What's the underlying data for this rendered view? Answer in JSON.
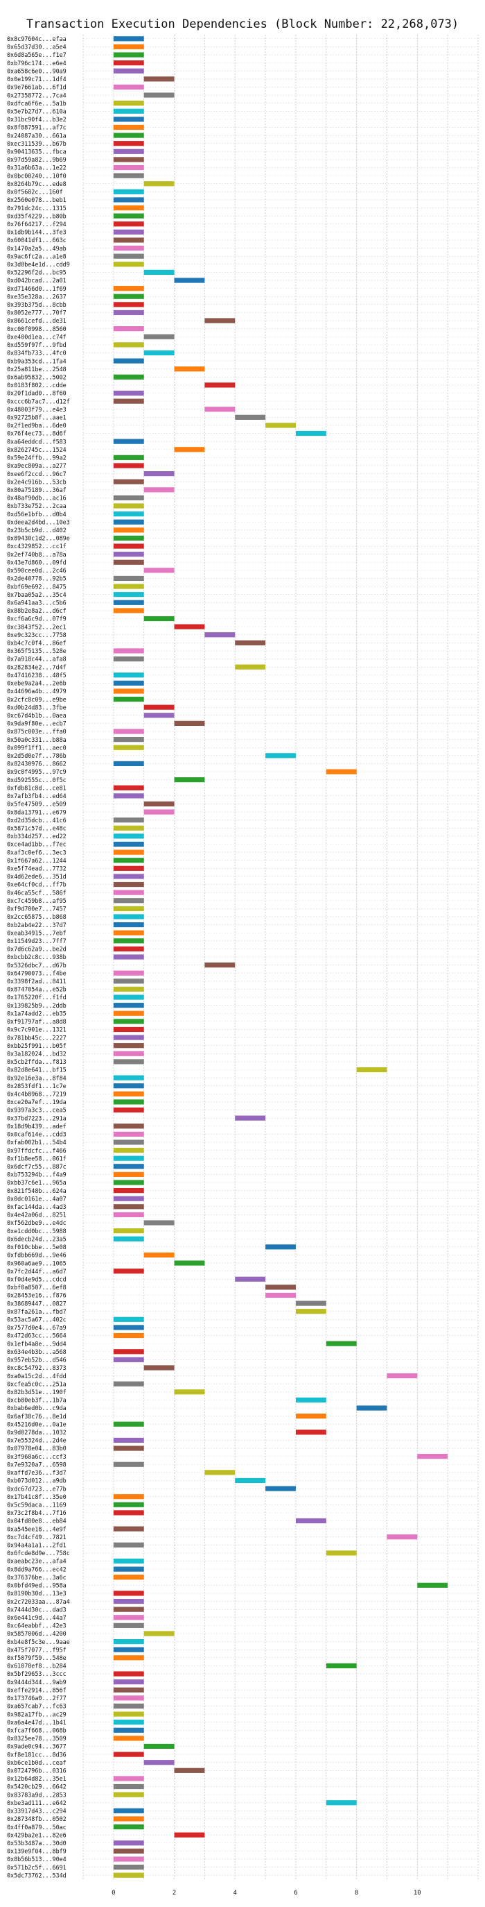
{
  "chart_data": {
    "type": "bar",
    "orientation": "horizontal-gantt",
    "title": "Transaction Execution Dependencies (Block Number: 22,268,073)",
    "xlabel": "",
    "ylabel": "",
    "xlim": [
      -1,
      12
    ],
    "x_ticks": [
      0,
      2,
      4,
      6,
      8,
      10
    ],
    "grid": true,
    "palette": [
      "#1f77b4",
      "#ff7f0e",
      "#2ca02c",
      "#d62728",
      "#9467bd",
      "#8c564b",
      "#e377c2",
      "#7f7f7f",
      "#bcbd22",
      "#17becf"
    ],
    "transactions": [
      {
        "label": "0x8c97604c...efaa",
        "start": 0
      },
      {
        "label": "0x65d37d30...a5e4",
        "start": 0
      },
      {
        "label": "0x6d8a565e...f1e7",
        "start": 0
      },
      {
        "label": "0xb796c174...e6e4",
        "start": 0
      },
      {
        "label": "0xa658c6e0...90a9",
        "start": 0
      },
      {
        "label": "0x0e199c71...1df4",
        "start": 1
      },
      {
        "label": "0x9e7661ab...6f1d",
        "start": 0
      },
      {
        "label": "0x27358772...7ca4",
        "start": 1
      },
      {
        "label": "0xdfca6f6e...5a1b",
        "start": 0
      },
      {
        "label": "0x5e7b27d7...610a",
        "start": 0
      },
      {
        "label": "0x31bc90f4...b3e2",
        "start": 0
      },
      {
        "label": "0x8f887591...af7c",
        "start": 0
      },
      {
        "label": "0x24087a30...661a",
        "start": 0
      },
      {
        "label": "0xec311539...b67b",
        "start": 0
      },
      {
        "label": "0x90413635...fbca",
        "start": 0
      },
      {
        "label": "0x97d59a82...9b69",
        "start": 0
      },
      {
        "label": "0x31a6b63a...1e22",
        "start": 0
      },
      {
        "label": "0x0bc00240...10f0",
        "start": 0
      },
      {
        "label": "0x8264b79c...ede8",
        "start": 1
      },
      {
        "label": "0x0f5682c...160f",
        "start": 0
      },
      {
        "label": "0x2560e078...beb1",
        "start": 0
      },
      {
        "label": "0x791dc24c...1315",
        "start": 0
      },
      {
        "label": "0xd35f4229...b80b",
        "start": 0
      },
      {
        "label": "0x76f64217...f294",
        "start": 0
      },
      {
        "label": "0x1db9b144...3fe3",
        "start": 0
      },
      {
        "label": "0x60041df1...663c",
        "start": 0
      },
      {
        "label": "0x1470a2a5...49ab",
        "start": 0
      },
      {
        "label": "0x9ac6fc2a...a1e8",
        "start": 0
      },
      {
        "label": "0x3d8be4e1d...cdd9",
        "start": 0
      },
      {
        "label": "0x52296f2d...bc95",
        "start": 1
      },
      {
        "label": "0xd042bcad...2a01",
        "start": 2
      },
      {
        "label": "0xd71466d0...1f69",
        "start": 0
      },
      {
        "label": "0xe35e328a...2637",
        "start": 0
      },
      {
        "label": "0x393b375d...8cbb",
        "start": 0
      },
      {
        "label": "0x8052e777...70f7",
        "start": 0
      },
      {
        "label": "0x8661cefd...de31",
        "start": 3
      },
      {
        "label": "0xc00f0998...8560",
        "start": 0
      },
      {
        "label": "0xe400d1ea...c74f",
        "start": 1
      },
      {
        "label": "0xd559f97f...9fbd",
        "start": 0
      },
      {
        "label": "0x834fb733...4fc0",
        "start": 1
      },
      {
        "label": "0xb9a353cd...1fa4",
        "start": 0
      },
      {
        "label": "0x25a811be...2548",
        "start": 2
      },
      {
        "label": "0x6ab95832...5002",
        "start": 0
      },
      {
        "label": "0x0183f802...cdde",
        "start": 3
      },
      {
        "label": "0x20f1dad0...8f60",
        "start": 0
      },
      {
        "label": "0xccc6b7ac7...d12f",
        "start": 0
      },
      {
        "label": "0x48003f79...e4e3",
        "start": 3
      },
      {
        "label": "0x92725b8f...aae1",
        "start": 4
      },
      {
        "label": "0x2f1ed9ba...6de0",
        "start": 5
      },
      {
        "label": "0x76f4ec73...8d6f",
        "start": 6
      },
      {
        "label": "0xa64eddcd...f583",
        "start": 0
      },
      {
        "label": "0x8262745c...1524",
        "start": 2
      },
      {
        "label": "0x59e24ffb...99a2",
        "start": 0
      },
      {
        "label": "0xa9ec809a...a277",
        "start": 0
      },
      {
        "label": "0xee6f2ccd...96c7",
        "start": 1
      },
      {
        "label": "0x2e4c916b...53cb",
        "start": 0
      },
      {
        "label": "0x80a75189...36af",
        "start": 1
      },
      {
        "label": "0x48af90db...ac16",
        "start": 0
      },
      {
        "label": "0xb733e752...2caa",
        "start": 0
      },
      {
        "label": "0xd56e1bfb...d0b4",
        "start": 0
      },
      {
        "label": "0xdeea2d4bd...10e3",
        "start": 0
      },
      {
        "label": "0x23b5cb9d...d402",
        "start": 0
      },
      {
        "label": "0x89430c1d2...089e",
        "start": 0
      },
      {
        "label": "0xc4329852...cc1f",
        "start": 0
      },
      {
        "label": "0x2ef740b8...a78a",
        "start": 0
      },
      {
        "label": "0x43e7d860...09fd",
        "start": 0
      },
      {
        "label": "0x590cee0d...2c46",
        "start": 1
      },
      {
        "label": "0x2de40778...92b5",
        "start": 0
      },
      {
        "label": "0xbf69e692...8475",
        "start": 0
      },
      {
        "label": "0x7baa05a2...35c4",
        "start": 0
      },
      {
        "label": "0x6a941aa3...c5b6",
        "start": 0
      },
      {
        "label": "0x88b2e8a2...d6cf",
        "start": 0
      },
      {
        "label": "0xcf6a6c9d...07f9",
        "start": 1
      },
      {
        "label": "0xc3843f52...2ec1",
        "start": 2
      },
      {
        "label": "0xe9c323cc...7758",
        "start": 3
      },
      {
        "label": "0xb4c7c0f4...86ef",
        "start": 4
      },
      {
        "label": "0x365f5135...528e",
        "start": 0
      },
      {
        "label": "0x7a918c44...afa8",
        "start": 0
      },
      {
        "label": "0x282834e2...7d4f",
        "start": 4
      },
      {
        "label": "0x47416238...48f5",
        "start": 0
      },
      {
        "label": "0xebe9a2a4...2e6b",
        "start": 0
      },
      {
        "label": "0x44696a4b...4979",
        "start": 0
      },
      {
        "label": "0x2cfc8c09...e9be",
        "start": 0
      },
      {
        "label": "0xd0b24d83...3fbe",
        "start": 1
      },
      {
        "label": "0xc67d4b1b...0aea",
        "start": 1
      },
      {
        "label": "0x9da9f80e...ecb7",
        "start": 2
      },
      {
        "label": "0x875c003e...ffa0",
        "start": 0
      },
      {
        "label": "0x50a0c331...b88a",
        "start": 0
      },
      {
        "label": "0x099f1ff1...aec0",
        "start": 0
      },
      {
        "label": "0x2d5d0e7f...786b",
        "start": 5
      },
      {
        "label": "0x82430976...8662",
        "start": 0
      },
      {
        "label": "0x9c0f4995...97c9",
        "start": 7
      },
      {
        "label": "0xd592555c...0f5c",
        "start": 2
      },
      {
        "label": "0xfdb81c8d...ce81",
        "start": 0
      },
      {
        "label": "0x7afb3fb4...ed64",
        "start": 0
      },
      {
        "label": "0x5fe47509...e509",
        "start": 1
      },
      {
        "label": "0x8da13791...e679",
        "start": 1
      },
      {
        "label": "0xd2d35dcb...41c6",
        "start": 0
      },
      {
        "label": "0x5871c57d...e48c",
        "start": 0
      },
      {
        "label": "0xb334d257...ed22",
        "start": 0
      },
      {
        "label": "0xce4ad1bb...f7ec",
        "start": 0
      },
      {
        "label": "0xaf3c0ef6...3ec3",
        "start": 0
      },
      {
        "label": "0x1f667a62...1244",
        "start": 0
      },
      {
        "label": "0xe5f74ead...7732",
        "start": 0
      },
      {
        "label": "0x4d62ede6...351d",
        "start": 0
      },
      {
        "label": "0xe64cf0cd...ff7b",
        "start": 0
      },
      {
        "label": "0x46ca55cf...586f",
        "start": 0
      },
      {
        "label": "0xc7c459b8...af95",
        "start": 0
      },
      {
        "label": "0xf9d700e7...7457",
        "start": 0
      },
      {
        "label": "0x2cc65875...b868",
        "start": 0
      },
      {
        "label": "0xb2ab4e22...37d7",
        "start": 0
      },
      {
        "label": "0xeab34915...7ebf",
        "start": 0
      },
      {
        "label": "0x11549d23...7ff7",
        "start": 0
      },
      {
        "label": "0x7d6c62a9...be2d",
        "start": 0
      },
      {
        "label": "0xbcbb2c8c...938b",
        "start": 0
      },
      {
        "label": "0x5326dbc7...d67b",
        "start": 3
      },
      {
        "label": "0x64790073...f4be",
        "start": 0
      },
      {
        "label": "0x3398f2ad...8411",
        "start": 0
      },
      {
        "label": "0x8747054a...e52b",
        "start": 0
      },
      {
        "label": "0x1765220f...f1fd",
        "start": 0
      },
      {
        "label": "0x139825b9...2ddb",
        "start": 0
      },
      {
        "label": "0x1a74add2...eb35",
        "start": 0
      },
      {
        "label": "0xf91797af...a8d8",
        "start": 0
      },
      {
        "label": "0x9c7c901e...1321",
        "start": 0
      },
      {
        "label": "0x781bb45c...2227",
        "start": 0
      },
      {
        "label": "0xbb25f991...b05f",
        "start": 0
      },
      {
        "label": "0x3a182024...bd32",
        "start": 0
      },
      {
        "label": "0x5cb2ffda...f813",
        "start": 0
      },
      {
        "label": "0x82d8e641...bf15",
        "start": 8
      },
      {
        "label": "0x92e16e3a...8f84",
        "start": 0
      },
      {
        "label": "0x2853fdf1...1c7e",
        "start": 0
      },
      {
        "label": "0x4c4b8968...7219",
        "start": 0
      },
      {
        "label": "0xce20a7ef...19da",
        "start": 0
      },
      {
        "label": "0x9397a3c3...cea5",
        "start": 0
      },
      {
        "label": "0x37bd7223...291a",
        "start": 4
      },
      {
        "label": "0x18d9b439...adef",
        "start": 0
      },
      {
        "label": "0x0caf614e...cdd3",
        "start": 0
      },
      {
        "label": "0xfab002b1...54b4",
        "start": 0
      },
      {
        "label": "0x97ffdcfc...f466",
        "start": 0
      },
      {
        "label": "0xf1b8ee58...061f",
        "start": 0
      },
      {
        "label": "0x6dcf7c55...887c",
        "start": 0
      },
      {
        "label": "0xb753294b...f4a9",
        "start": 0
      },
      {
        "label": "0xbb37c6e1...965a",
        "start": 0
      },
      {
        "label": "0x821f548b...624a",
        "start": 0
      },
      {
        "label": "0x0dc0161e...4a07",
        "start": 0
      },
      {
        "label": "0xfac144da...4ad3",
        "start": 0
      },
      {
        "label": "0x4e42a06d...8251",
        "start": 0
      },
      {
        "label": "0xf562dbe9...e4dc",
        "start": 1
      },
      {
        "label": "0xe1cdd0bc...5988",
        "start": 0
      },
      {
        "label": "0x6decb24d...23a5",
        "start": 0
      },
      {
        "label": "0xf010cbbe...5e08",
        "start": 5
      },
      {
        "label": "0xfdbb669d...9e46",
        "start": 1
      },
      {
        "label": "0x960a6ae9...1065",
        "start": 2
      },
      {
        "label": "0x7fc2d44f...a6d7",
        "start": 0
      },
      {
        "label": "0xf0d4e9d5...cdcd",
        "start": 4
      },
      {
        "label": "0xbf0a8507...6ef8",
        "start": 5
      },
      {
        "label": "0x28453e16...f876",
        "start": 5
      },
      {
        "label": "0x38689447...0827",
        "start": 6
      },
      {
        "label": "0x87fa261a...fbd7",
        "start": 6
      },
      {
        "label": "0x53ac5a67...402c",
        "start": 0
      },
      {
        "label": "0x7577d0e4...67a9",
        "start": 0
      },
      {
        "label": "0x472d63cc...5664",
        "start": 0
      },
      {
        "label": "0x1efb4a8e...9dd4",
        "start": 7
      },
      {
        "label": "0x634e4b3b...a568",
        "start": 0
      },
      {
        "label": "0x957eb52b...d546",
        "start": 0
      },
      {
        "label": "0xc8c54792...8373",
        "start": 1
      },
      {
        "label": "0xa0a15c2d...4fdd",
        "start": 9
      },
      {
        "label": "0xcfea5c0c...251a",
        "start": 0
      },
      {
        "label": "0x82b3d51e...190f",
        "start": 2
      },
      {
        "label": "0xcb80eb3f...1b7a",
        "start": 6
      },
      {
        "label": "0xbab6ed0b...c9da",
        "start": 8
      },
      {
        "label": "0x6af38c76...8e1d",
        "start": 6
      },
      {
        "label": "0x45216d0e...0a1e",
        "start": 0
      },
      {
        "label": "0x9d0278da...1032",
        "start": 6
      },
      {
        "label": "0x7e55324d...2d4e",
        "start": 0
      },
      {
        "label": "0x07978e04...83b0",
        "start": 0
      },
      {
        "label": "0x3f968a6c...ccf3",
        "start": 10
      },
      {
        "label": "0x7e9320a7...6598",
        "start": 0
      },
      {
        "label": "0xaffd7e36...f3d7",
        "start": 3
      },
      {
        "label": "0xb073d012...a9db",
        "start": 4
      },
      {
        "label": "0xdc67d723...e77b",
        "start": 5
      },
      {
        "label": "0x17b41c8f...35e0",
        "start": 0
      },
      {
        "label": "0x5c59daca...1169",
        "start": 0
      },
      {
        "label": "0x73c2f8b4...7f16",
        "start": 0
      },
      {
        "label": "0x04fd80e8...eb84",
        "start": 6
      },
      {
        "label": "0xa545ee18...4e9f",
        "start": 0
      },
      {
        "label": "0xc7d4cf49...7821",
        "start": 9
      },
      {
        "label": "0x94a4a1a1...2fd1",
        "start": 0
      },
      {
        "label": "0x6fcde8d9e...758c",
        "start": 7
      },
      {
        "label": "0xaeabc23e...afa4",
        "start": 0
      },
      {
        "label": "0x8dd9a766...ec42",
        "start": 0
      },
      {
        "label": "0x376376be...3a6c",
        "start": 0
      },
      {
        "label": "0x0bfd49ed...958a",
        "start": 10
      },
      {
        "label": "0x8190b30d...13e3",
        "start": 0
      },
      {
        "label": "0x2c72033aa...87a4",
        "start": 0
      },
      {
        "label": "0x7444d30c...dad3",
        "start": 0
      },
      {
        "label": "0x6e441c9d...44a7",
        "start": 0
      },
      {
        "label": "0xc64eabbf...42e3",
        "start": 0
      },
      {
        "label": "0x5857006d...4200",
        "start": 1
      },
      {
        "label": "0xb4e8f5c3e...9aae",
        "start": 0
      },
      {
        "label": "0x475f7077...f95f",
        "start": 0
      },
      {
        "label": "0xf5079f59...548e",
        "start": 0
      },
      {
        "label": "0x61070ef8...b284",
        "start": 7
      },
      {
        "label": "0x5bf29653...3ccc",
        "start": 0
      },
      {
        "label": "0x9444d344...9ab9",
        "start": 0
      },
      {
        "label": "0xeffe2914...856f",
        "start": 0
      },
      {
        "label": "0x173746a0...2f77",
        "start": 0
      },
      {
        "label": "0xa657cab7...fc63",
        "start": 0
      },
      {
        "label": "0x982a17fb...ac29",
        "start": 0
      },
      {
        "label": "0xa6a4e47d...1b41",
        "start": 0
      },
      {
        "label": "0xfca7f668...068b",
        "start": 0
      },
      {
        "label": "0x8325ee78...3509",
        "start": 0
      },
      {
        "label": "0x9ade0c94...3677",
        "start": 1
      },
      {
        "label": "0xf8e181cc...8d36",
        "start": 0
      },
      {
        "label": "0xb6ce1b0d...ceaf",
        "start": 1
      },
      {
        "label": "0x0724796b...0316",
        "start": 2
      },
      {
        "label": "0x12b64d82...35e1",
        "start": 0
      },
      {
        "label": "0x5420cb29...6642",
        "start": 0
      },
      {
        "label": "0x83783a9d...2853",
        "start": 0
      },
      {
        "label": "0xbe3ad111...e642",
        "start": 7
      },
      {
        "label": "0x33917d43...c294",
        "start": 0
      },
      {
        "label": "0x287348fb...0502",
        "start": 0
      },
      {
        "label": "0x4ff0a879...50ac",
        "start": 0
      },
      {
        "label": "0x429ba2e1...82e6",
        "start": 2
      },
      {
        "label": "0x53b3487a...30d0",
        "start": 0
      },
      {
        "label": "0x139e9f04...8bf9",
        "start": 0
      },
      {
        "label": "0x8b56b513...90e4",
        "start": 0
      },
      {
        "label": "0x571b2c5f...6691",
        "start": 0
      },
      {
        "label": "0x5dc73762...534d",
        "start": 0
      }
    ]
  }
}
